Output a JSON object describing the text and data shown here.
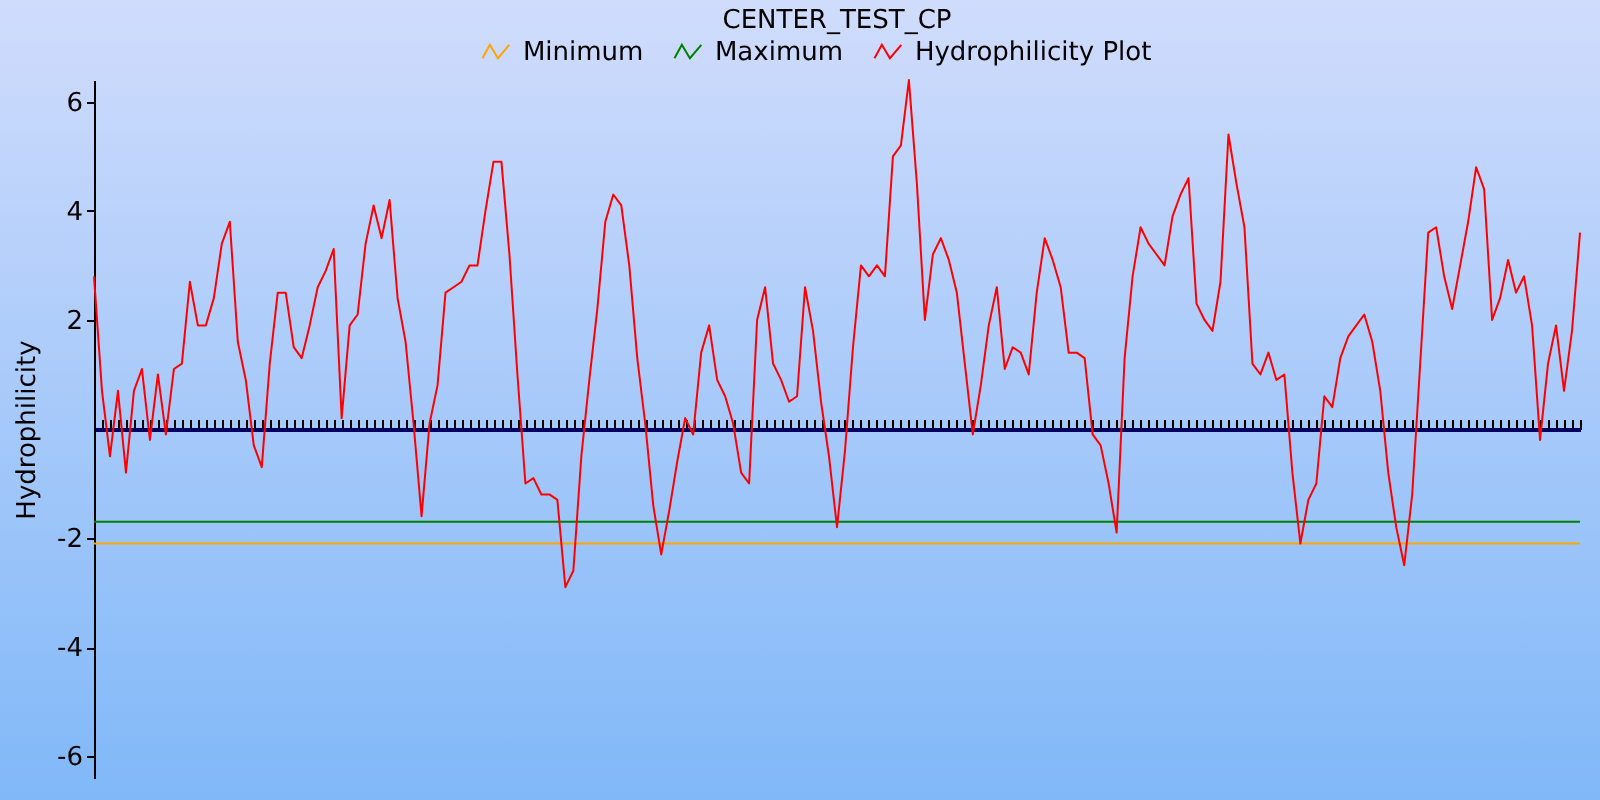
{
  "chart_data": {
    "type": "line",
    "title": "CENTER_TEST_CP",
    "ylabel": "Hydrophilicity",
    "categories": [
      null,
      null,
      null,
      null,
      null,
      null,
      null,
      null,
      null,
      null,
      null,
      null,
      null,
      null,
      null,
      null,
      null,
      null,
      null,
      null,
      null,
      null,
      null,
      null,
      null,
      null,
      null,
      null,
      null,
      null,
      null,
      null,
      null,
      null,
      null,
      null,
      null,
      null,
      null,
      null,
      null,
      null,
      null,
      null,
      null,
      null,
      null,
      null,
      null,
      null,
      null,
      null,
      null,
      null,
      null,
      null,
      null,
      null,
      null,
      null,
      null,
      null,
      null,
      null,
      null,
      null,
      null,
      null,
      null,
      null,
      null,
      null,
      null,
      null,
      null,
      null,
      null,
      null,
      null,
      null,
      null,
      null,
      null,
      null,
      null,
      null,
      null,
      null,
      null,
      null,
      null,
      null,
      null,
      null,
      null,
      null,
      null,
      null,
      null,
      null,
      null,
      null,
      null,
      null,
      null,
      null,
      null,
      null,
      null,
      null,
      null,
      null,
      null,
      null,
      null,
      null,
      null,
      null,
      null,
      null,
      null,
      null,
      null,
      null,
      null,
      null,
      null,
      null,
      null,
      null,
      null,
      null,
      null,
      null,
      null,
      null,
      null,
      null,
      null,
      null,
      null,
      null,
      null,
      null,
      null,
      null,
      null,
      null,
      null,
      null,
      null,
      null,
      null,
      null,
      null,
      null,
      null,
      null,
      null,
      null,
      null,
      null,
      null,
      null,
      null,
      null,
      null,
      null,
      null,
      null,
      null,
      null,
      null,
      null,
      null,
      null,
      null,
      null,
      null,
      null,
      null,
      null,
      null,
      null,
      null,
      null,
      null
    ],
    "series": [
      {
        "name": "Minimum",
        "color": "#ffa500",
        "values": [
          -2.1,
          -2.1,
          -2.1,
          -2.1,
          -2.1,
          -2.1,
          -2.1,
          -2.1,
          -2.1,
          -2.1,
          -2.1,
          -2.1,
          -2.1,
          -2.1,
          -2.1,
          -2.1,
          -2.1,
          -2.1,
          -2.1,
          -2.1,
          -2.1,
          -2.1,
          -2.1,
          -2.1,
          -2.1,
          -2.1,
          -2.1,
          -2.1,
          -2.1,
          -2.1,
          -2.1,
          -2.1,
          -2.1,
          -2.1,
          -2.1,
          -2.1,
          -2.1,
          -2.1,
          -2.1,
          -2.1,
          -2.1,
          -2.1,
          -2.1,
          -2.1,
          -2.1,
          -2.1,
          -2.1,
          -2.1,
          -2.1,
          -2.1,
          -2.1,
          -2.1,
          -2.1,
          -2.1,
          -2.1,
          -2.1,
          -2.1,
          -2.1,
          -2.1,
          -2.1,
          -2.1,
          -2.1,
          -2.1,
          -2.1,
          -2.1,
          -2.1,
          -2.1,
          -2.1,
          -2.1,
          -2.1,
          -2.1,
          -2.1,
          -2.1,
          -2.1,
          -2.1,
          -2.1,
          -2.1,
          -2.1,
          -2.1,
          -2.1,
          -2.1,
          -2.1,
          -2.1,
          -2.1,
          -2.1,
          -2.1,
          -2.1,
          -2.1,
          -2.1,
          -2.1,
          -2.1,
          -2.1,
          -2.1,
          -2.1,
          -2.1,
          -2.1,
          -2.1,
          -2.1,
          -2.1,
          -2.1,
          -2.1,
          -2.1,
          -2.1,
          -2.1,
          -2.1,
          -2.1,
          -2.1,
          -2.1,
          -2.1,
          -2.1,
          -2.1,
          -2.1,
          -2.1,
          -2.1,
          -2.1,
          -2.1,
          -2.1,
          -2.1,
          -2.1,
          -2.1,
          -2.1,
          -2.1,
          -2.1,
          -2.1,
          -2.1,
          -2.1,
          -2.1,
          -2.1,
          -2.1,
          -2.1,
          -2.1,
          -2.1,
          -2.1,
          -2.1,
          -2.1,
          -2.1,
          -2.1,
          -2.1,
          -2.1,
          -2.1,
          -2.1,
          -2.1,
          -2.1,
          -2.1,
          -2.1,
          -2.1,
          -2.1,
          -2.1,
          -2.1,
          -2.1,
          -2.1,
          -2.1,
          -2.1,
          -2.1,
          -2.1,
          -2.1,
          -2.1,
          -2.1,
          -2.1,
          -2.1,
          -2.1,
          -2.1,
          -2.1,
          -2.1,
          -2.1,
          -2.1,
          -2.1,
          -2.1,
          -2.1,
          -2.1,
          -2.1,
          -2.1,
          -2.1,
          -2.1,
          -2.1,
          -2.1,
          -2.1,
          -2.1,
          -2.1,
          -2.1,
          -2.1,
          -2.1,
          -2.1,
          -2.1,
          -2.1,
          -2.1,
          -2.1
        ]
      },
      {
        "name": "Maximum",
        "color": "#008000",
        "values": [
          -1.7,
          -1.7,
          -1.7,
          -1.7,
          -1.7,
          -1.7,
          -1.7,
          -1.7,
          -1.7,
          -1.7,
          -1.7,
          -1.7,
          -1.7,
          -1.7,
          -1.7,
          -1.7,
          -1.7,
          -1.7,
          -1.7,
          -1.7,
          -1.7,
          -1.7,
          -1.7,
          -1.7,
          -1.7,
          -1.7,
          -1.7,
          -1.7,
          -1.7,
          -1.7,
          -1.7,
          -1.7,
          -1.7,
          -1.7,
          -1.7,
          -1.7,
          -1.7,
          -1.7,
          -1.7,
          -1.7,
          -1.7,
          -1.7,
          -1.7,
          -1.7,
          -1.7,
          -1.7,
          -1.7,
          -1.7,
          -1.7,
          -1.7,
          -1.7,
          -1.7,
          -1.7,
          -1.7,
          -1.7,
          -1.7,
          -1.7,
          -1.7,
          -1.7,
          -1.7,
          -1.7,
          -1.7,
          -1.7,
          -1.7,
          -1.7,
          -1.7,
          -1.7,
          -1.7,
          -1.7,
          -1.7,
          -1.7,
          -1.7,
          -1.7,
          -1.7,
          -1.7,
          -1.7,
          -1.7,
          -1.7,
          -1.7,
          -1.7,
          -1.7,
          -1.7,
          -1.7,
          -1.7,
          -1.7,
          -1.7,
          -1.7,
          -1.7,
          -1.7,
          -1.7,
          -1.7,
          -1.7,
          -1.7,
          -1.7,
          -1.7,
          -1.7,
          -1.7,
          -1.7,
          -1.7,
          -1.7,
          -1.7,
          -1.7,
          -1.7,
          -1.7,
          -1.7,
          -1.7,
          -1.7,
          -1.7,
          -1.7,
          -1.7,
          -1.7,
          -1.7,
          -1.7,
          -1.7,
          -1.7,
          -1.7,
          -1.7,
          -1.7,
          -1.7,
          -1.7,
          -1.7,
          -1.7,
          -1.7,
          -1.7,
          -1.7,
          -1.7,
          -1.7,
          -1.7,
          -1.7,
          -1.7,
          -1.7,
          -1.7,
          -1.7,
          -1.7,
          -1.7,
          -1.7,
          -1.7,
          -1.7,
          -1.7,
          -1.7,
          -1.7,
          -1.7,
          -1.7,
          -1.7,
          -1.7,
          -1.7,
          -1.7,
          -1.7,
          -1.7,
          -1.7,
          -1.7,
          -1.7,
          -1.7,
          -1.7,
          -1.7,
          -1.7,
          -1.7,
          -1.7,
          -1.7,
          -1.7,
          -1.7,
          -1.7,
          -1.7,
          -1.7,
          -1.7,
          -1.7,
          -1.7,
          -1.7,
          -1.7,
          -1.7,
          -1.7,
          -1.7,
          -1.7,
          -1.7,
          -1.7,
          -1.7,
          -1.7,
          -1.7,
          -1.7,
          -1.7,
          -1.7,
          -1.7,
          -1.7,
          -1.7,
          -1.7,
          -1.7,
          -1.7
        ]
      },
      {
        "name": "Hydrophilicity Plot",
        "color": "#ff0000",
        "values": [
          2.8,
          0.7,
          -0.5,
          0.7,
          -0.8,
          0.7,
          1.1,
          -0.2,
          1.0,
          -0.1,
          1.1,
          1.2,
          2.7,
          1.9,
          1.9,
          2.4,
          3.4,
          3.8,
          1.6,
          0.9,
          -0.3,
          -0.7,
          1.2,
          2.5,
          2.5,
          1.5,
          1.3,
          1.9,
          2.6,
          2.9,
          3.3,
          0.2,
          1.9,
          2.1,
          3.4,
          4.1,
          3.5,
          4.2,
          2.4,
          1.6,
          0.1,
          -1.6,
          0.1,
          0.8,
          2.5,
          2.6,
          2.7,
          3.0,
          3.0,
          4.0,
          4.9,
          4.9,
          3.2,
          1.0,
          -1.0,
          -0.9,
          -1.2,
          -1.2,
          -1.3,
          -2.9,
          -2.6,
          -0.5,
          0.9,
          2.2,
          3.8,
          4.3,
          4.1,
          3.0,
          1.3,
          0.1,
          -1.4,
          -2.3,
          -1.5,
          -0.6,
          0.2,
          -0.1,
          1.4,
          1.9,
          0.9,
          0.6,
          0.1,
          -0.8,
          -1.0,
          2.0,
          2.6,
          1.2,
          0.9,
          0.5,
          0.6,
          2.6,
          1.8,
          0.5,
          -0.5,
          -1.8,
          -0.4,
          1.5,
          3.0,
          2.8,
          3.0,
          2.8,
          5.0,
          5.2,
          6.4,
          4.5,
          2.0,
          3.2,
          3.5,
          3.1,
          2.5,
          1.2,
          -0.1,
          0.8,
          1.9,
          2.6,
          1.1,
          1.5,
          1.4,
          1.0,
          2.5,
          3.5,
          3.1,
          2.6,
          1.4,
          1.4,
          1.3,
          -0.1,
          -0.3,
          -1.0,
          -1.9,
          1.3,
          2.8,
          3.7,
          3.4,
          3.2,
          3.0,
          3.9,
          4.3,
          4.6,
          2.3,
          2.0,
          1.8,
          2.7,
          5.4,
          4.5,
          3.7,
          1.2,
          1.0,
          1.4,
          0.9,
          1.0,
          -0.8,
          -2.1,
          -1.3,
          -1.0,
          0.6,
          0.4,
          1.3,
          1.7,
          1.9,
          2.1,
          1.6,
          0.7,
          -0.8,
          -1.8,
          -2.5,
          -1.2,
          1.2,
          3.6,
          3.7,
          2.8,
          2.2,
          3.0,
          3.8,
          4.8,
          4.4,
          2.0,
          2.4,
          3.1,
          2.5,
          2.8,
          1.9,
          -0.2,
          1.2,
          1.9,
          0.7,
          1.8,
          3.6
        ]
      }
    ],
    "ylim": [
      -6.4,
      6.4
    ],
    "yticks": [
      -6,
      -4,
      -2,
      2,
      4,
      6
    ],
    "tick_labels": "y",
    "legend": "top"
  }
}
